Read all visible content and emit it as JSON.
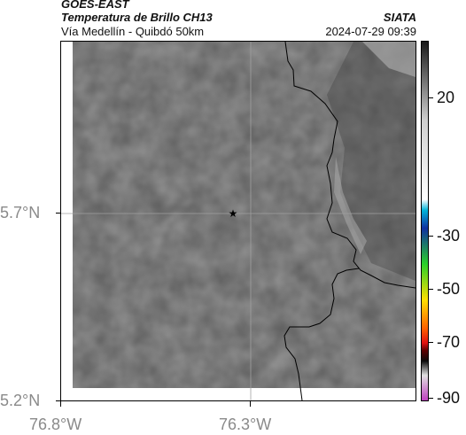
{
  "header": {
    "title": "GOES-EAST",
    "subtitle": "Temperatura de Brillo CH13",
    "organization": "SIATA",
    "route": "Vía Medellín - Quibdó 50km",
    "datetime": "2024-07-29 09:39"
  },
  "map": {
    "lat_labels": [
      "5.7°N",
      "5.2°N"
    ],
    "lon_labels": [
      "76.8°W",
      "76.3°W"
    ],
    "marker_icon": "star-icon",
    "colors": {
      "imagery_base": "#7a7a7a",
      "border_line": "#000000",
      "grid_line": "#a0a0a0"
    }
  },
  "colorbar": {
    "labels": [
      "20",
      "-30",
      "-50",
      "-70",
      "-90"
    ],
    "palette": [
      "#1a1a1a",
      "#cfcfcf",
      "#ffffff",
      "#00b4d8",
      "#1030a0",
      "#2ad02a",
      "#ffe000",
      "#ff6000",
      "#e01010",
      "#600000",
      "#0a0a0a",
      "#e0e0e0",
      "#c040c0"
    ]
  }
}
